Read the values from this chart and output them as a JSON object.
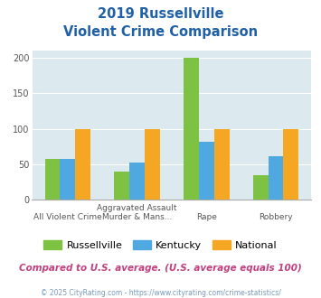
{
  "title_line1": "2019 Russellville",
  "title_line2": "Violent Crime Comparison",
  "top_labels": [
    "",
    "Aggravated Assault",
    "",
    ""
  ],
  "bot_labels": [
    "All Violent Crime",
    "Murder & Mans...",
    "Rape",
    "Robbery"
  ],
  "series": {
    "Russellville": [
      57,
      40,
      200,
      35
    ],
    "Kentucky": [
      57,
      52,
      82,
      61
    ],
    "National": [
      100,
      100,
      100,
      100
    ]
  },
  "colors": {
    "Russellville": "#7dc242",
    "Kentucky": "#4fa8e0",
    "National": "#f5a623"
  },
  "ylim": [
    0,
    210
  ],
  "yticks": [
    0,
    50,
    100,
    150,
    200
  ],
  "plot_bg": "#dce9ee",
  "title_color": "#2060a8",
  "footer_text": "Compared to U.S. average. (U.S. average equals 100)",
  "footer_color": "#c04080",
  "credit_text": "© 2025 CityRating.com - https://www.cityrating.com/crime-statistics/",
  "credit_color": "#7799bb"
}
